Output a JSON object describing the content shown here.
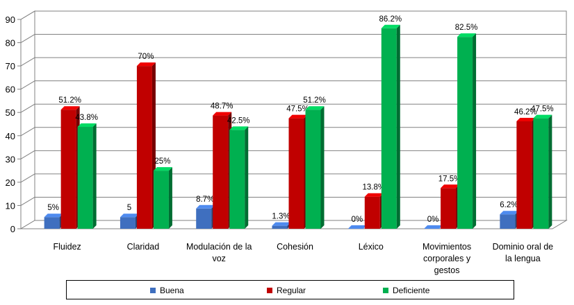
{
  "chart_data": {
    "type": "bar",
    "categories": [
      "Fluidez",
      "Claridad",
      "Modulación de la voz",
      "Cohesión",
      "Léxico",
      "Movimientos corporales y gestos",
      "Dominio oral de la lengua"
    ],
    "series": [
      {
        "name": "Buena",
        "color": "#3f6fbf",
        "values": [
          5,
          5,
          8.7,
          1.3,
          0,
          0,
          6.2
        ],
        "labels": [
          "5%",
          "5",
          "8.7%",
          "1.3%",
          "0%",
          "0%",
          "6.2%"
        ]
      },
      {
        "name": "Regular",
        "color": "#c00000",
        "values": [
          51.2,
          70,
          48.7,
          47.5,
          13.8,
          17.5,
          46.2
        ],
        "labels": [
          "51.2%",
          "70%",
          "48.7%",
          "47.5%",
          "13.8%",
          "17.5%",
          "46.2%"
        ]
      },
      {
        "name": "Deficiente",
        "color": "#00b050",
        "values": [
          43.8,
          25,
          42.5,
          51.2,
          86.2,
          82.5,
          47.5
        ],
        "labels": [
          "43.8%",
          "25%",
          "42.5%",
          "51.2%",
          "86.2%",
          "82.5%",
          "47.5%"
        ]
      }
    ],
    "yticks": [
      "0",
      "10",
      "20",
      "30",
      "40",
      "50",
      "60",
      "70",
      "80",
      "90"
    ],
    "ylim": [
      0,
      90
    ],
    "grid": true,
    "legend_position": "bottom"
  }
}
